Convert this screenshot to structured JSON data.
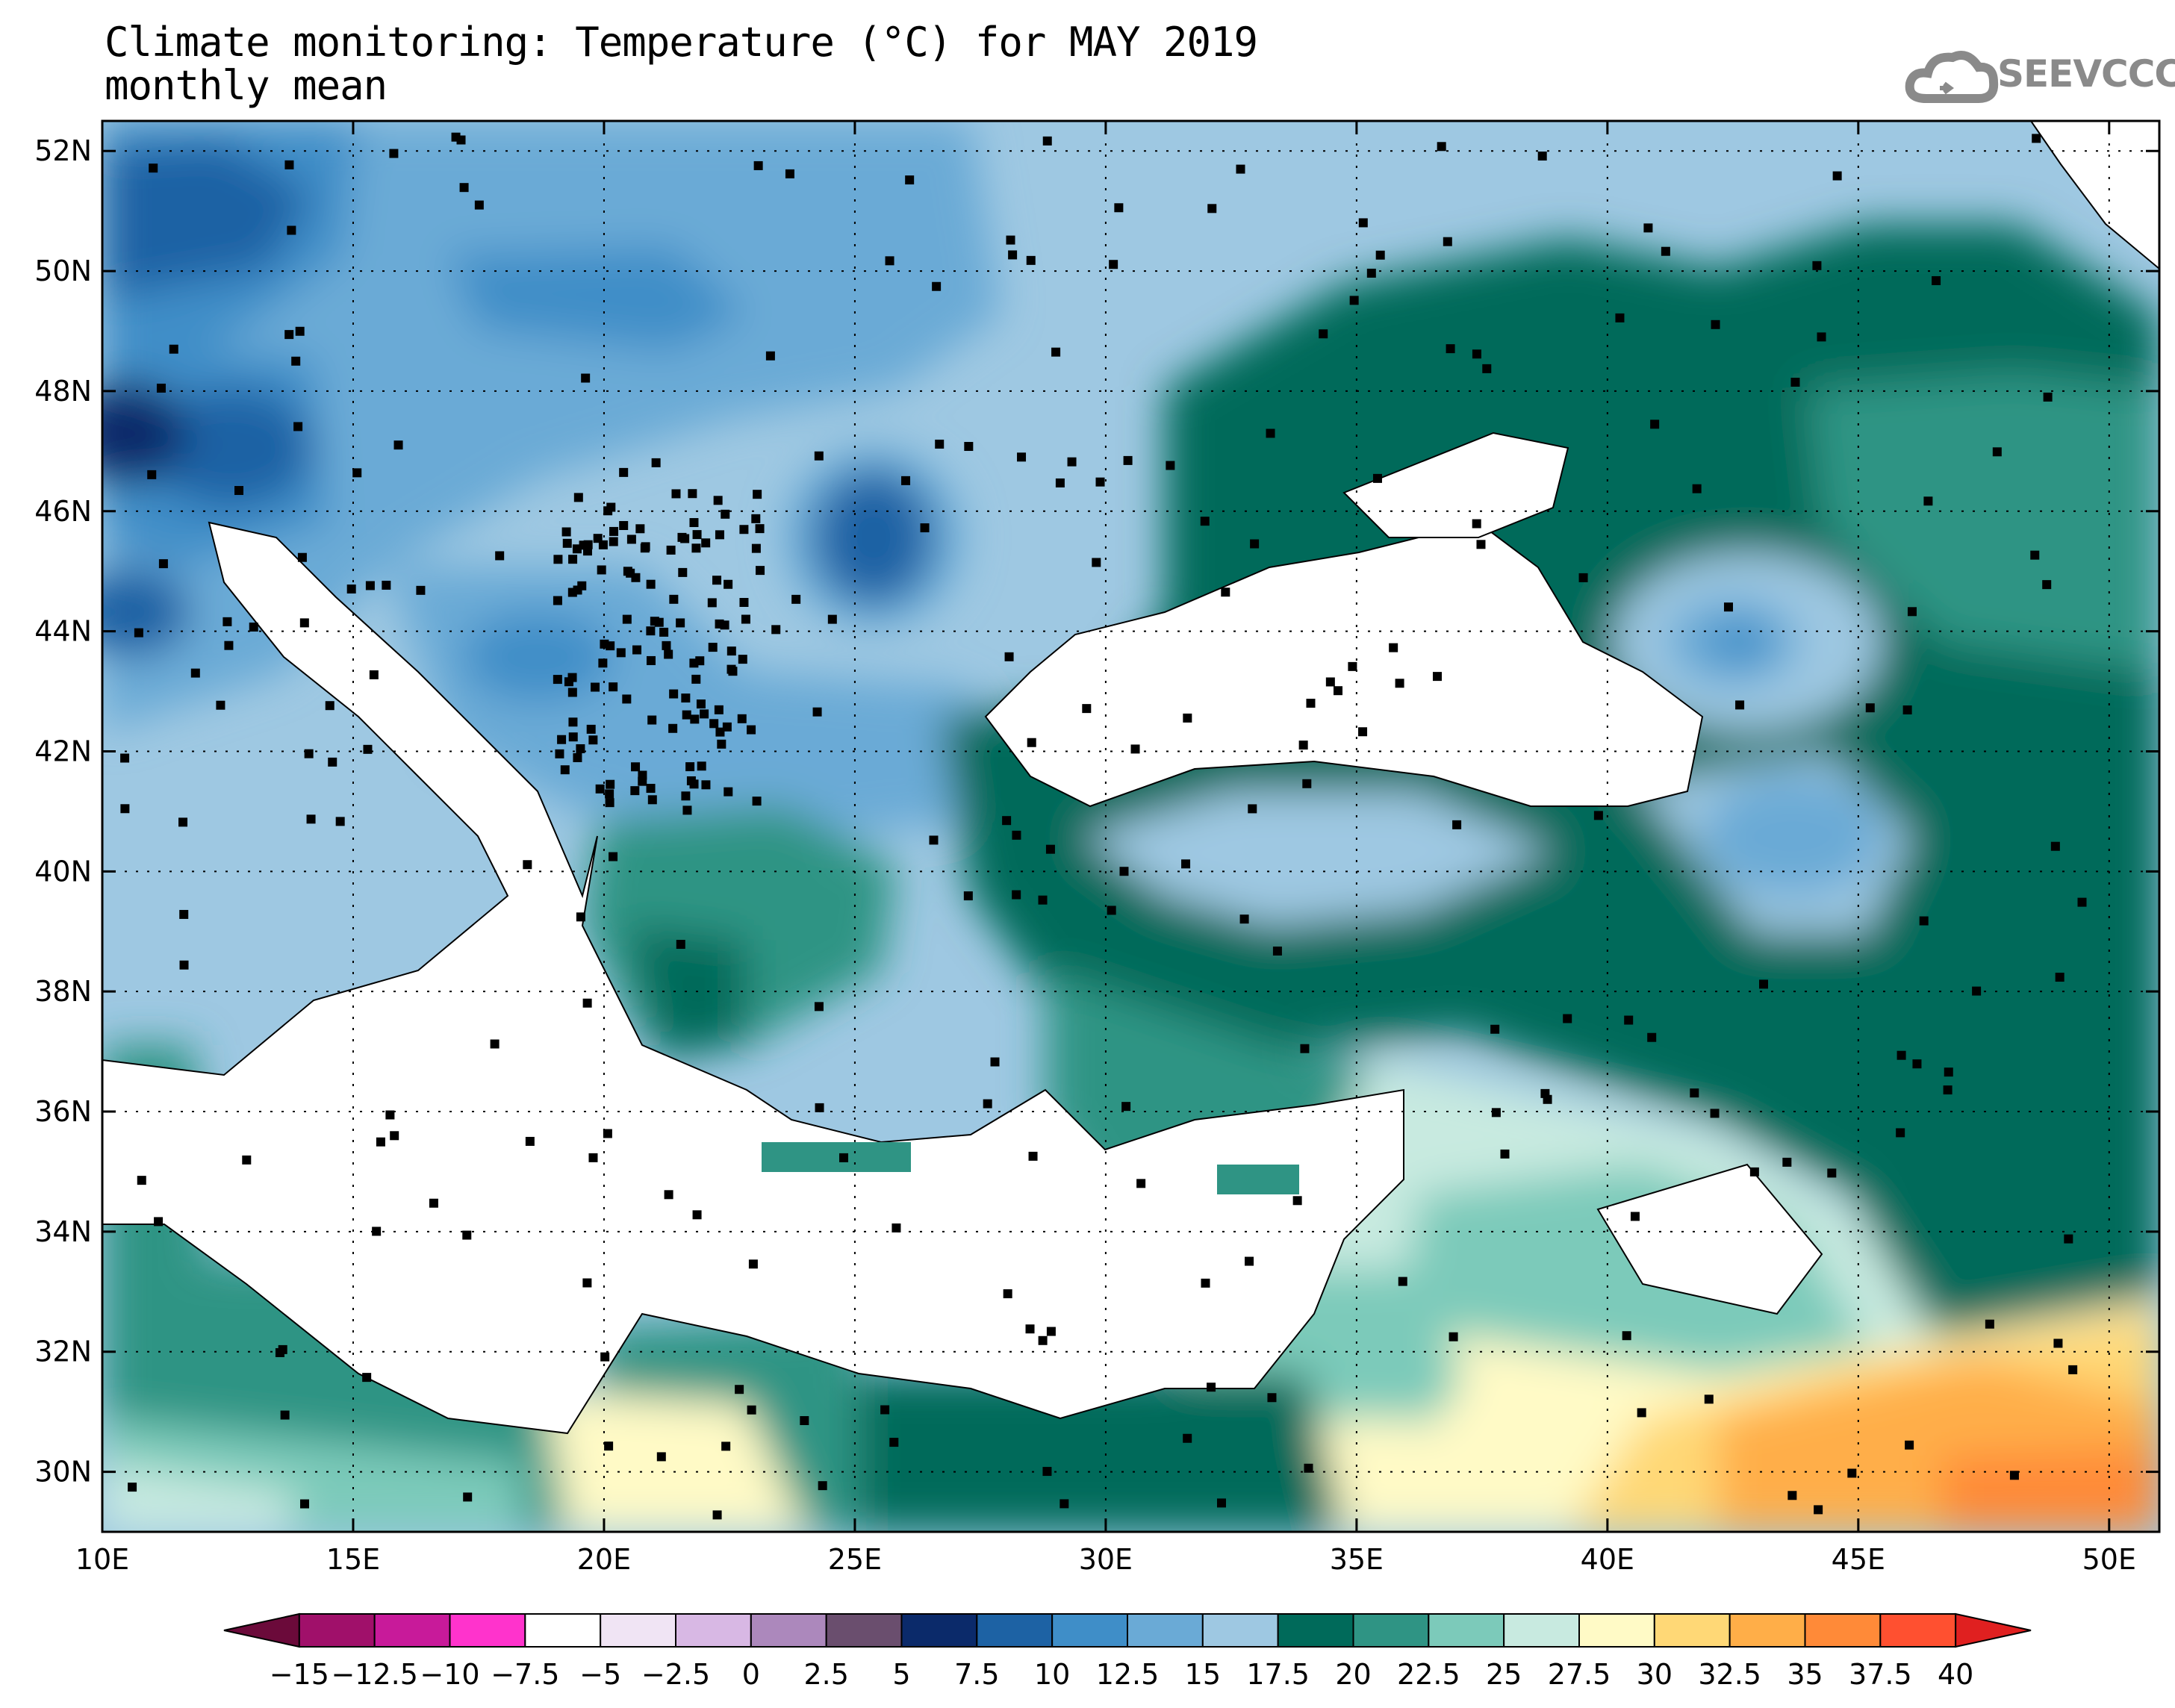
{
  "title": {
    "line1": "Climate monitoring: Temperature (°C) for MAY 2019",
    "line2": "monthly mean"
  },
  "logo": {
    "text": "SEEVCCC",
    "color": "#8a8a8a"
  },
  "map": {
    "lon_range": [
      10,
      51
    ],
    "lat_range": [
      29,
      52.5
    ],
    "lon_ticks": [
      {
        "value": 10,
        "label": "10E"
      },
      {
        "value": 15,
        "label": "15E"
      },
      {
        "value": 20,
        "label": "20E"
      },
      {
        "value": 25,
        "label": "25E"
      },
      {
        "value": 30,
        "label": "30E"
      },
      {
        "value": 35,
        "label": "35E"
      },
      {
        "value": 40,
        "label": "40E"
      },
      {
        "value": 45,
        "label": "45E"
      },
      {
        "value": 50,
        "label": "50E"
      }
    ],
    "lat_ticks": [
      {
        "value": 30,
        "label": "30N"
      },
      {
        "value": 32,
        "label": "32N"
      },
      {
        "value": 34,
        "label": "34N"
      },
      {
        "value": 36,
        "label": "36N"
      },
      {
        "value": 38,
        "label": "38N"
      },
      {
        "value": 40,
        "label": "40N"
      },
      {
        "value": 42,
        "label": "42N"
      },
      {
        "value": 44,
        "label": "44N"
      },
      {
        "value": 46,
        "label": "46N"
      },
      {
        "value": 48,
        "label": "48N"
      },
      {
        "value": 50,
        "label": "50N"
      },
      {
        "value": 52,
        "label": "52N"
      }
    ],
    "gridlines": true
  },
  "colorbar": {
    "colors": [
      "#6b0a3a",
      "#a0106a",
      "#c81a9a",
      "#ff33cc",
      "#ffffff",
      "#f0e4f4",
      "#d8b8e4",
      "#ac88bc",
      "#6a4e6e",
      "#0b2a6a",
      "#1d62a4",
      "#3f8ec8",
      "#6aaad6",
      "#9ec8e2",
      "#006a5a",
      "#2f9484",
      "#7ccaba",
      "#c8eae0",
      "#fffac6",
      "#ffd876",
      "#ffae48",
      "#ff8a38",
      "#ff5030",
      "#e02020"
    ],
    "labels": [
      "−15",
      "−12.5",
      "−10",
      "−7.5",
      "−5",
      "−2.5",
      "0",
      "2.5",
      "5",
      "7.5",
      "10",
      "12.5",
      "15",
      "17.5",
      "20",
      "22.5",
      "25",
      "27.5",
      "30",
      "32.5",
      "35",
      "37.5",
      "40"
    ]
  }
}
